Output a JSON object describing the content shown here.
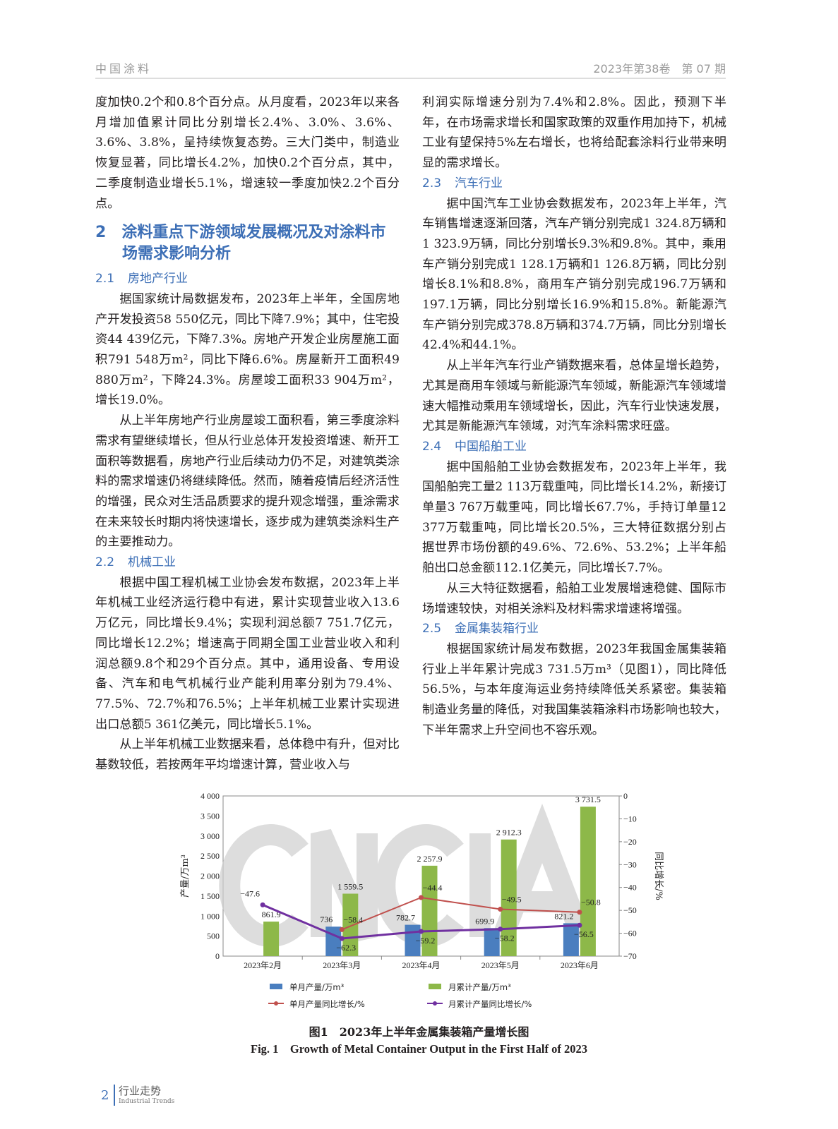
{
  "header": {
    "journal": "中国涂料",
    "issue": "2023年第38卷　第 07 期"
  },
  "left": {
    "p0": "度加快0.2个和0.8个百分点。从月度看，2023年以来各月增加值累计同比分别增长2.4%、3.0%、3.6%、3.6%、3.8%，呈持续恢复态势。三大门类中，制造业恢复显著，同比增长4.2%，加快0.2个百分点，其中，二季度制造业增长5.1%，增速较一季度加快2.2个百分点。",
    "h2_num": "2",
    "h2": "涂料重点下游领域发展概况及对涂料市场需求影响分析",
    "s21_num": "2.1",
    "s21": "房地产行业",
    "p1": "据国家统计局数据发布，2023年上半年，全国房地产开发投资58 550亿元，同比下降7.9%；其中，住宅投资44 439亿元，下降7.3%。房地产开发企业房屋施工面积791 548万m²，同比下降6.6%。房屋新开工面积49 880万m²，下降24.3%。房屋竣工面积33 904万m²，增长19.0%。",
    "p2": "从上半年房地产行业房屋竣工面积看，第三季度涂料需求有望继续增长，但从行业总体开发投资增速、新开工面积等数据看，房地产行业后续动力仍不足，对建筑类涂料的需求增速仍将继续降低。然而，随着疫情后经济活性的增强，民众对生活品质要求的提升观念增强，重涂需求在未来较长时期内将快速增长，逐步成为建筑类涂料生产的主要推动力。",
    "s22_num": "2.2",
    "s22": "机械工业",
    "p3": "根据中国工程机械工业协会发布数据，2023年上半年机械工业经济运行稳中有进，累计实现营业收入13.6万亿元，同比增长9.4%；实现利润总额7 751.7亿元，同比增长12.2%；增速高于同期全国工业营业收入和利润总额9.8个和29个百分点。其中，通用设备、专用设备、汽车和电气机械行业产能利用率分别为79.4%、77.5%、72.7%和76.5%；上半年机械工业累计实现进出口总额5 361亿美元，同比增长5.1%。",
    "p4": "从上半年机械工业数据来看，总体稳中有升，但对比基数较低，若按两年平均增速计算，营业收入与"
  },
  "right": {
    "p0": "利润实际增速分别为7.4%和2.8%。因此，预测下半年，在市场需求增长和国家政策的双重作用加持下，机械工业有望保持5%左右增长，也将给配套涂料行业带来明显的需求增长。",
    "s23_num": "2.3",
    "s23": "汽车行业",
    "p1": "据中国汽车工业协会数据发布，2023年上半年，汽车销售增速逐渐回落，汽车产销分别完成1 324.8万辆和1 323.9万辆，同比分别增长9.3%和9.8%。其中，乘用车产销分别完成1 128.1万辆和1 126.8万辆，同比分别增长8.1%和8.8%，商用车产销分别完成196.7万辆和197.1万辆，同比分别增长16.9%和15.8%。新能源汽车产销分别完成378.8万辆和374.7万辆，同比分别增长42.4%和44.1%。",
    "p2": "从上半年汽车行业产销数据来看，总体呈增长趋势，尤其是商用车领域与新能源汽车领域，新能源汽车领域增速大幅推动乘用车领域增长，因此，汽车行业快速发展，尤其是新能源汽车领域，对汽车涂料需求旺盛。",
    "s24_num": "2.4",
    "s24": "中国船舶工业",
    "p3": "据中国船舶工业协会数据发布，2023年上半年，我国船舶完工量2 113万载重吨，同比增长14.2%，新接订单量3 767万载重吨，同比增长67.7%，手持订单量12 377万载重吨，同比增长20.5%，三大特征数据分别占据世界市场份额的49.6%、72.6%、53.2%；上半年船舶出口总金额112.1亿美元，同比增长7.7%。",
    "p4": "从三大特征数据看，船舶工业发展增速稳健、国际市场增速较快，对相关涂料及材料需求增速将增强。",
    "s25_num": "2.5",
    "s25": "金属集装箱行业",
    "p5": "根据国家统计局发布数据，2023年我国金属集装箱行业上半年累计完成3 731.5万m³（见图1），同比降低56.5%，与本年度海运业务持续降低关系紧密。集装箱制造业务量的降低，对我国集装箱涂料市场影响也较大，下半年需求上升空间也不容乐观。"
  },
  "chart_data": {
    "type": "bar",
    "categories": [
      "2023年2月",
      "2023年3月",
      "2023年4月",
      "2023年5月",
      "2023年6月"
    ],
    "ylabel": "产量/万m³",
    "y2label": "同比增长/%",
    "ylim": [
      0,
      4000
    ],
    "yticks": [
      "0",
      "500",
      "1 000",
      "1 500",
      "2 000",
      "2 500",
      "3 000",
      "3 500",
      "4 000"
    ],
    "y2lim": [
      -70,
      0
    ],
    "y2ticks": [
      "−70",
      "−60",
      "−50",
      "−40",
      "−30",
      "−20",
      "−10",
      "0"
    ],
    "watermark": "CNCIA",
    "bars": [
      {
        "name": "单月产量/万m³",
        "color": "#4a7ebf",
        "values": [
          null,
          736,
          782.7,
          699.9,
          821.2
        ],
        "labels": [
          "",
          "736",
          "782.7",
          "699.9",
          "821.2"
        ]
      },
      {
        "name": "月累计产量/万m³",
        "color": "#8db849",
        "values": [
          861.9,
          1559.5,
          2257.9,
          2912.3,
          3731.5
        ],
        "labels": [
          "861.9",
          "1 559.5",
          "2 257.9",
          "2 912.3",
          "3 731.5"
        ]
      }
    ],
    "lines": [
      {
        "name": "单月产量同比增长/%",
        "color": "#c0504d",
        "values": [
          null,
          -58.4,
          -44.4,
          -49.5,
          -50.8
        ],
        "labels": [
          "",
          "−58.4",
          "−44.4",
          "−49.5",
          "−50.8"
        ]
      },
      {
        "name": "月累计产量同比增长/%",
        "color": "#7030a0",
        "values": [
          -47.6,
          -62.3,
          -59.2,
          -58.2,
          -56.5
        ],
        "labels": [
          "−47.6",
          "−62.3",
          "−59.2",
          "−58.2",
          "−56.5"
        ]
      }
    ]
  },
  "caption": {
    "cn": "图1　2023年上半年金属集装箱产量增长图",
    "en": "Fig. 1　Growth of Metal Container Output in the First Half of 2023"
  },
  "footer": {
    "page": "2",
    "section_cn": "行业走势",
    "section_en": "Industrial Trends"
  }
}
